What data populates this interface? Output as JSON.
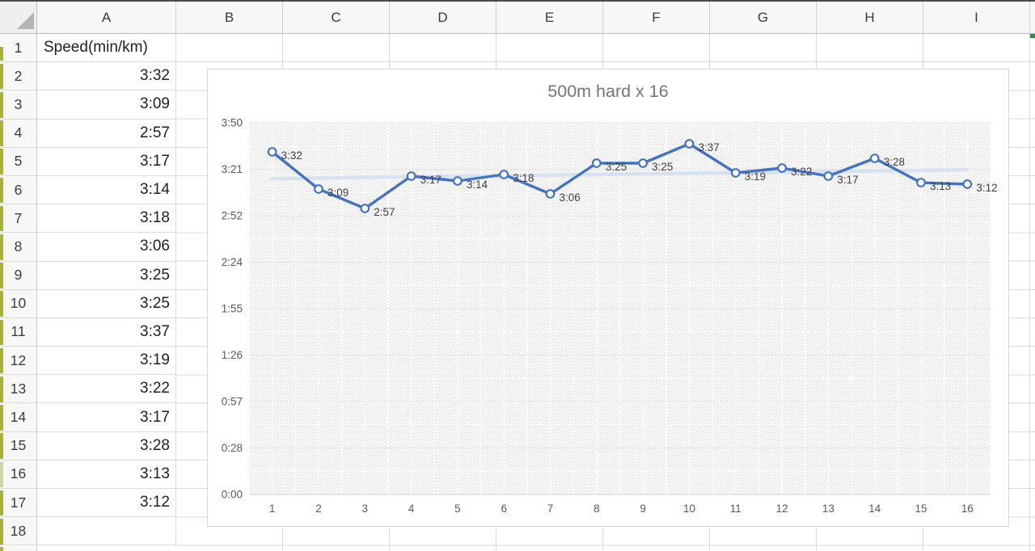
{
  "colors": {
    "series_blue": "#4472c4",
    "trendline_blue": "#d6e2f2",
    "grid_gray": "#d9d9d9",
    "axis_text": "#595959",
    "label_text": "#404040",
    "left_strip_green": "#a9b23d",
    "accent_green": "#2f8f46"
  },
  "sheet": {
    "column_headers": [
      "A",
      "B",
      "C",
      "D",
      "E",
      "F",
      "G",
      "H",
      "I"
    ],
    "rows": [
      {
        "n": "1",
        "a": "Speed(min/km)",
        "align": "left"
      },
      {
        "n": "2",
        "a": "3:32"
      },
      {
        "n": "3",
        "a": "3:09"
      },
      {
        "n": "4",
        "a": "2:57"
      },
      {
        "n": "5",
        "a": "3:17"
      },
      {
        "n": "6",
        "a": "3:14"
      },
      {
        "n": "7",
        "a": "3:18"
      },
      {
        "n": "8",
        "a": "3:06"
      },
      {
        "n": "9",
        "a": "3:25"
      },
      {
        "n": "10",
        "a": "3:25"
      },
      {
        "n": "11",
        "a": "3:37"
      },
      {
        "n": "12",
        "a": "3:19"
      },
      {
        "n": "13",
        "a": "3:22"
      },
      {
        "n": "14",
        "a": "3:17"
      },
      {
        "n": "15",
        "a": "3:28"
      },
      {
        "n": "16",
        "a": "3:13"
      },
      {
        "n": "17",
        "a": "3:12"
      },
      {
        "n": "18",
        "a": ""
      }
    ]
  },
  "chart_data": {
    "type": "line",
    "title": "500m hard x 16",
    "x_labels": [
      "1",
      "2",
      "3",
      "4",
      "5",
      "6",
      "7",
      "8",
      "9",
      "10",
      "11",
      "12",
      "13",
      "14",
      "15",
      "16"
    ],
    "series": [
      {
        "name": "Speed(min/km)",
        "point_labels": [
          "3:32",
          "3:09",
          "2:57",
          "3:17",
          "3:14",
          "3:18",
          "3:06",
          "3:25",
          "3:25",
          "3:37",
          "3:19",
          "3:22",
          "3:17",
          "3:28",
          "3:13",
          "3:12"
        ],
        "values_seconds": [
          212,
          189,
          177,
          197,
          194,
          198,
          186,
          205,
          205,
          217,
          199,
          202,
          197,
          208,
          193,
          192
        ],
        "color": "#4472c4",
        "marker": "open-circle"
      }
    ],
    "y_ticks": [
      {
        "label": "0:00",
        "sec": 0
      },
      {
        "label": "0:28",
        "sec": 28.75
      },
      {
        "label": "0:57",
        "sec": 57.5
      },
      {
        "label": "1:26",
        "sec": 86.25
      },
      {
        "label": "1:55",
        "sec": 115
      },
      {
        "label": "2:24",
        "sec": 143.75
      },
      {
        "label": "2:52",
        "sec": 172.5
      },
      {
        "label": "3:21",
        "sec": 201.25
      },
      {
        "label": "3:50",
        "sec": 230
      }
    ],
    "ylim_seconds": [
      0,
      230
    ],
    "trendline": {
      "type": "linear",
      "color": "#d6e2f2",
      "width": 4.5
    },
    "plot_area_fill": "light-upward-diagonal-hatch",
    "gridlines": "major-horizontal-plus-minor-grid",
    "legend": "none",
    "data_labels_position": "right"
  }
}
